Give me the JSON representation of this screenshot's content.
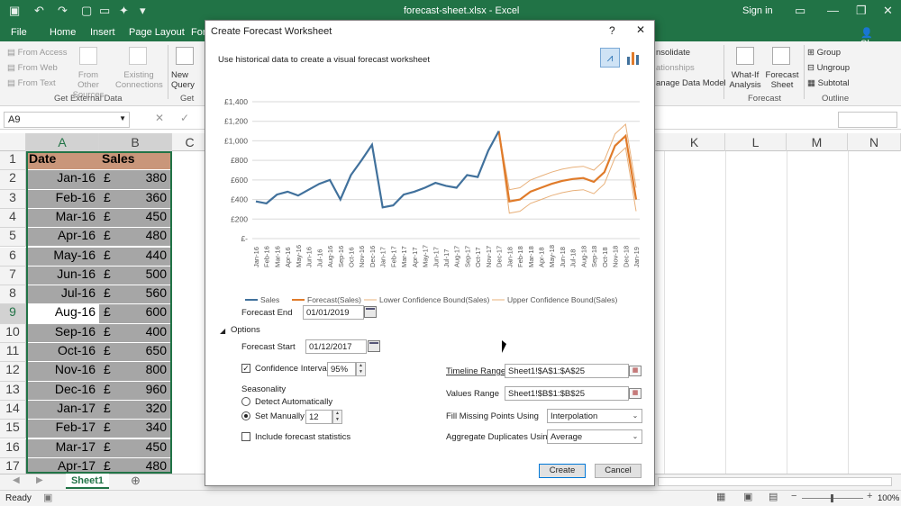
{
  "window": {
    "doc_title": "forecast-sheet.xlsx  -  Excel",
    "sign_in": "Sign in",
    "share": "Share"
  },
  "ribbon_tabs": [
    "File",
    "Home",
    "Insert",
    "Page Layout",
    "For"
  ],
  "ribbon": {
    "from_access": "From Access",
    "from_web": "From Web",
    "from_text": "From Text",
    "from_other_sources": "From Other Sources",
    "existing_connections": "Existing Connections",
    "get_external_data": "Get External Data",
    "new_query": "New Query",
    "get": "Get",
    "consolidate": "nsolidate",
    "relationships": "ationships",
    "manage_data_model": "anage Data Model",
    "what_if": "What-If Analysis",
    "forecast_sheet": "Forecast Sheet",
    "forecast_group": "Forecast",
    "group": "Group",
    "ungroup": "Ungroup",
    "subtotal": "Subtotal",
    "outline": "Outline"
  },
  "formula_bar": {
    "name_box": "A9"
  },
  "grid": {
    "col_headers_left": [
      "A",
      "B",
      "C"
    ],
    "col_headers_right": [
      "K",
      "L",
      "M",
      "N"
    ],
    "header_row": {
      "date": "Date",
      "sales": "Sales"
    },
    "currency": "£",
    "rows": [
      {
        "n": "1"
      },
      {
        "n": "2",
        "date": "Jan-16",
        "sales": "380"
      },
      {
        "n": "3",
        "date": "Feb-16",
        "sales": "360"
      },
      {
        "n": "4",
        "date": "Mar-16",
        "sales": "450"
      },
      {
        "n": "5",
        "date": "Apr-16",
        "sales": "480"
      },
      {
        "n": "6",
        "date": "May-16",
        "sales": "440"
      },
      {
        "n": "7",
        "date": "Jun-16",
        "sales": "500"
      },
      {
        "n": "8",
        "date": "Jul-16",
        "sales": "560"
      },
      {
        "n": "9",
        "date": "Aug-16",
        "sales": "600"
      },
      {
        "n": "10",
        "date": "Sep-16",
        "sales": "400"
      },
      {
        "n": "11",
        "date": "Oct-16",
        "sales": "650"
      },
      {
        "n": "12",
        "date": "Nov-16",
        "sales": "800"
      },
      {
        "n": "13",
        "date": "Dec-16",
        "sales": "960"
      },
      {
        "n": "14",
        "date": "Jan-17",
        "sales": "320"
      },
      {
        "n": "15",
        "date": "Feb-17",
        "sales": "340"
      },
      {
        "n": "16",
        "date": "Mar-17",
        "sales": "450"
      },
      {
        "n": "17",
        "date": "Apr-17",
        "sales": "480"
      }
    ]
  },
  "sheet_tab": "Sheet1",
  "status": {
    "ready": "Ready",
    "zoom": "100%"
  },
  "dialog": {
    "title": "Create Forecast Worksheet",
    "help": "?",
    "close": "✕",
    "description": "Use historical data to create a visual forecast worksheet",
    "forecast_end_label": "Forecast End",
    "forecast_end": "01/01/2019",
    "options_toggle": "Options",
    "forecast_start_label": "Forecast Start",
    "forecast_start": "01/12/2017",
    "confidence_label": "Confidence Interval",
    "confidence_checked": true,
    "confidence_value": "95%",
    "seasonality_label": "Seasonality",
    "detect_auto": "Detect Automatically",
    "set_manually": "Set Manually",
    "set_manually_value": "12",
    "include_stats": "Include forecast statistics",
    "timeline_label": "Timeline Range",
    "timeline_value": "Sheet1!$A$1:$A$25",
    "values_label": "Values Range",
    "values_value": "Sheet1!$B$1:$B$25",
    "fill_missing_label": "Fill Missing Points Using",
    "fill_missing_value": "Interpolation",
    "aggregate_label": "Aggregate Duplicates Using",
    "aggregate_value": "Average",
    "create": "Create",
    "cancel": "Cancel"
  },
  "chart_data": {
    "type": "line",
    "y_tick_labels": [
      "£1,400",
      "£1,200",
      "£1,000",
      "£800",
      "£600",
      "£400",
      "£200",
      "£-"
    ],
    "ylim": [
      0,
      1400
    ],
    "categories": [
      "Jan-16",
      "Feb-16",
      "Mar-16",
      "Apr-16",
      "May-16",
      "Jun-16",
      "Jul-16",
      "Aug-16",
      "Sep-16",
      "Oct-16",
      "Nov-16",
      "Dec-16",
      "Jan-17",
      "Feb-17",
      "Mar-17",
      "Apr-17",
      "May-17",
      "Jun-17",
      "Jul-17",
      "Aug-17",
      "Sep-17",
      "Oct-17",
      "Nov-17",
      "Dec-17",
      "Jan-18",
      "Feb-18",
      "Mar-18",
      "Apr-18",
      "May-18",
      "Jun-18",
      "Jul-18",
      "Aug-18",
      "Sep-18",
      "Oct-18",
      "Nov-18",
      "Dec-18",
      "Jan-19"
    ],
    "series": [
      {
        "name": "Sales",
        "color": "#41719c",
        "values": [
          380,
          360,
          450,
          480,
          440,
          500,
          560,
          600,
          400,
          650,
          800,
          960,
          320,
          340,
          450,
          480,
          520,
          570,
          540,
          520,
          650,
          630,
          900,
          1100,
          null,
          null,
          null,
          null,
          null,
          null,
          null,
          null,
          null,
          null,
          null,
          null,
          null
        ]
      },
      {
        "name": "Forecast(Sales)",
        "color": "#e07b2a",
        "values": [
          null,
          null,
          null,
          null,
          null,
          null,
          null,
          null,
          null,
          null,
          null,
          null,
          null,
          null,
          null,
          null,
          null,
          null,
          null,
          null,
          null,
          null,
          null,
          1100,
          380,
          400,
          480,
          520,
          560,
          590,
          610,
          620,
          580,
          680,
          950,
          1050,
          400
        ]
      },
      {
        "name": "Lower Confidence Bound(Sales)",
        "color": "#e8b07a",
        "values": [
          null,
          null,
          null,
          null,
          null,
          null,
          null,
          null,
          null,
          null,
          null,
          null,
          null,
          null,
          null,
          null,
          null,
          null,
          null,
          null,
          null,
          null,
          null,
          1100,
          260,
          280,
          360,
          400,
          440,
          470,
          490,
          500,
          460,
          560,
          830,
          930,
          280
        ]
      },
      {
        "name": "Upper Confidence Bound(Sales)",
        "color": "#e8b07a",
        "values": [
          null,
          null,
          null,
          null,
          null,
          null,
          null,
          null,
          null,
          null,
          null,
          null,
          null,
          null,
          null,
          null,
          null,
          null,
          null,
          null,
          null,
          null,
          null,
          1100,
          500,
          520,
          600,
          640,
          680,
          710,
          730,
          740,
          700,
          800,
          1070,
          1170,
          520
        ]
      }
    ]
  }
}
